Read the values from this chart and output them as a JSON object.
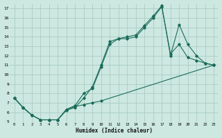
{
  "xlabel": "Humidex (Indice chaleur)",
  "bg_color": "#cce8e0",
  "grid_color": "#aaccc4",
  "line_color": "#1a6b5a",
  "xlim": [
    -0.5,
    23.5
  ],
  "ylim": [
    5,
    17.5
  ],
  "xticks": [
    0,
    1,
    2,
    3,
    4,
    5,
    6,
    7,
    8,
    9,
    10,
    11,
    12,
    13,
    14,
    15,
    16,
    17,
    18,
    19,
    20,
    21,
    22,
    23
  ],
  "yticks": [
    5,
    6,
    7,
    8,
    9,
    10,
    11,
    12,
    13,
    14,
    15,
    16,
    17
  ],
  "line1_x": [
    0,
    1,
    2,
    3,
    4,
    5,
    6,
    7,
    8,
    9,
    10,
    11,
    12,
    13,
    14,
    15,
    16,
    17,
    18,
    19,
    20,
    21,
    22,
    23
  ],
  "line1_y": [
    7.5,
    6.5,
    5.7,
    5.2,
    5.2,
    5.2,
    6.2,
    6.5,
    7.5,
    8.7,
    11.0,
    13.5,
    13.8,
    13.8,
    14.0,
    15.0,
    16.0,
    17.2,
    12.2,
    13.2,
    11.8,
    11.5,
    11.2,
    11.0
  ],
  "line2_x": [
    0,
    1,
    2,
    3,
    4,
    5,
    6,
    7,
    8,
    9,
    10,
    11,
    12,
    13,
    14,
    15,
    16,
    17,
    18,
    19,
    20,
    21,
    22,
    23
  ],
  "line2_y": [
    7.5,
    6.5,
    5.7,
    5.2,
    5.2,
    5.2,
    6.3,
    6.7,
    8.0,
    8.5,
    10.8,
    13.2,
    13.8,
    14.0,
    14.2,
    15.2,
    16.2,
    17.3,
    12.0,
    15.3,
    13.2,
    12.0,
    11.2,
    11.0
  ],
  "line3_x": [
    0,
    1,
    2,
    3,
    4,
    5,
    6,
    7,
    8,
    9,
    10,
    23
  ],
  "line3_y": [
    7.5,
    6.5,
    5.7,
    5.2,
    5.2,
    5.2,
    6.3,
    6.6,
    6.8,
    7.0,
    7.2,
    11.0
  ]
}
